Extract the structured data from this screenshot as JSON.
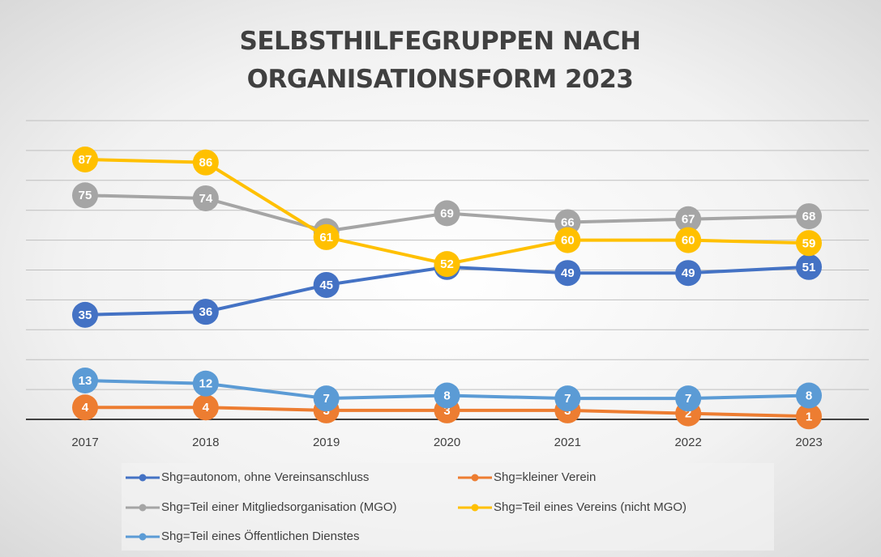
{
  "chart_data": {
    "type": "line",
    "title": "SELBSTHILFEGRUPPEN NACH ORGANISATIONSFORM 2023",
    "categories": [
      "2017",
      "2018",
      "2019",
      "2020",
      "2021",
      "2022",
      "2023"
    ],
    "series": [
      {
        "name": "Shg=autonom, ohne Vereinsanschluss",
        "color": "#4472c4",
        "values": [
          35,
          36,
          45,
          51,
          49,
          49,
          51
        ]
      },
      {
        "name": "Shg=kleiner Verein",
        "color": "#ed7d31",
        "values": [
          4,
          4,
          3,
          3,
          3,
          2,
          1
        ]
      },
      {
        "name": "Shg=Teil einer Mitgliedsorganisation (MGO)",
        "color": "#a5a5a5",
        "values": [
          75,
          74,
          63,
          69,
          66,
          67,
          68
        ]
      },
      {
        "name": "Shg=Teil eines Vereins (nicht MGO)",
        "color": "#ffc000",
        "values": [
          87,
          86,
          61,
          52,
          60,
          60,
          59
        ]
      },
      {
        "name": "Shg=Teil eines Öffentlichen Dienstes",
        "color": "#5b9bd5",
        "values": [
          13,
          12,
          7,
          8,
          7,
          7,
          8
        ]
      }
    ],
    "ylim": [
      0,
      100
    ],
    "yticks": [
      0,
      10,
      20,
      30,
      40,
      50,
      60,
      70,
      80,
      90,
      100
    ],
    "grid": true
  }
}
